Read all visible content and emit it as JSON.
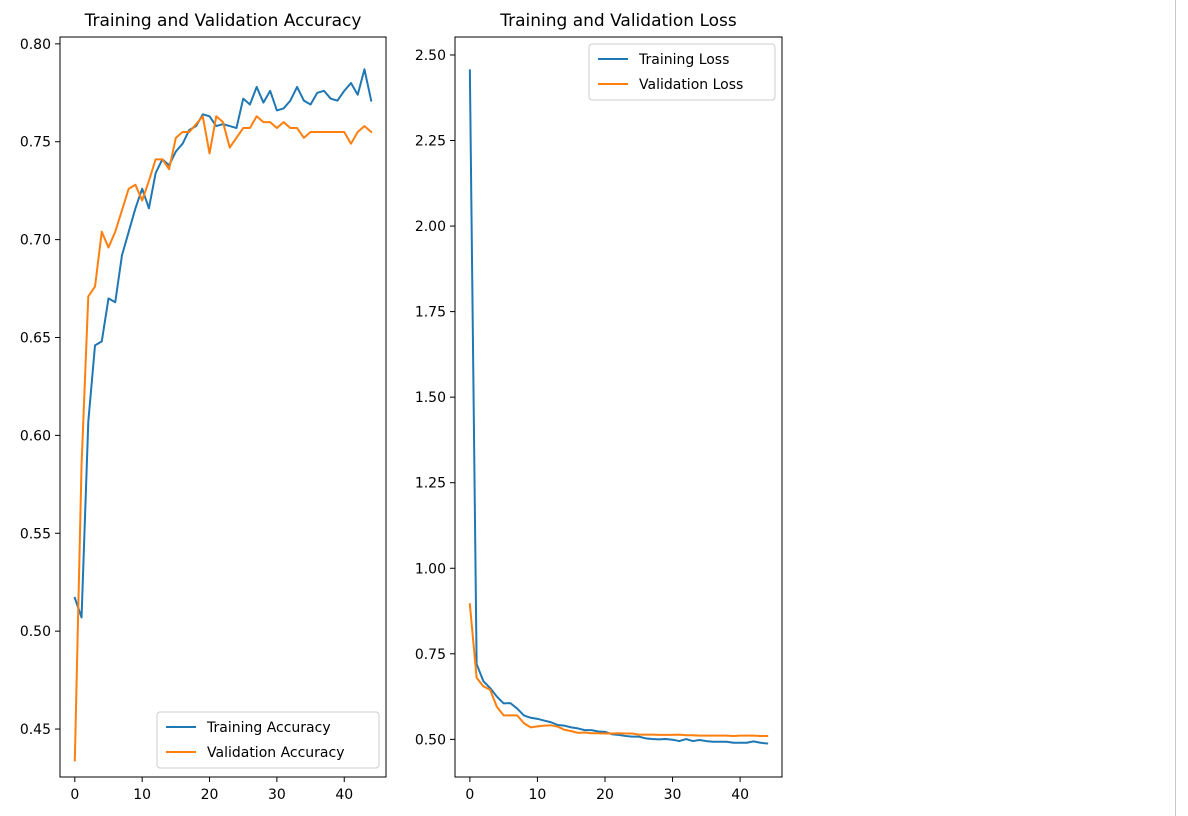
{
  "chart_data": [
    {
      "type": "line",
      "title": "Training and Validation Accuracy",
      "xlabel": "",
      "ylabel": "",
      "xlim": [
        -2.2,
        46.2
      ],
      "ylim": [
        0.4255,
        0.8035
      ],
      "xticks": [
        0,
        10,
        20,
        30,
        40
      ],
      "yticks": [
        0.45,
        0.5,
        0.55,
        0.6,
        0.65,
        0.7,
        0.75,
        0.8
      ],
      "ytick_decimals": 2,
      "grid": false,
      "legend": "lower-right",
      "x": [
        0,
        1,
        2,
        3,
        4,
        5,
        6,
        7,
        8,
        9,
        10,
        11,
        12,
        13,
        14,
        15,
        16,
        17,
        18,
        19,
        20,
        21,
        22,
        23,
        24,
        25,
        26,
        27,
        28,
        29,
        30,
        31,
        32,
        33,
        34,
        35,
        36,
        37,
        38,
        39,
        40,
        41,
        42,
        43,
        44
      ],
      "series": [
        {
          "name": "Training Accuracy",
          "color": "#1f77b4",
          "values": [
            0.517,
            0.507,
            0.607,
            0.646,
            0.648,
            0.67,
            0.668,
            0.692,
            0.704,
            0.716,
            0.726,
            0.716,
            0.734,
            0.741,
            0.738,
            0.745,
            0.749,
            0.756,
            0.758,
            0.764,
            0.763,
            0.758,
            0.759,
            0.758,
            0.757,
            0.772,
            0.769,
            0.778,
            0.77,
            0.776,
            0.766,
            0.767,
            0.771,
            0.778,
            0.771,
            0.769,
            0.775,
            0.776,
            0.772,
            0.771,
            0.776,
            0.78,
            0.774,
            0.787,
            0.771
          ]
        },
        {
          "name": "Validation Accuracy",
          "color": "#ff7f0e",
          "values": [
            0.434,
            0.585,
            0.671,
            0.676,
            0.704,
            0.696,
            0.704,
            0.715,
            0.726,
            0.728,
            0.72,
            0.73,
            0.741,
            0.741,
            0.736,
            0.752,
            0.755,
            0.755,
            0.759,
            0.763,
            0.744,
            0.763,
            0.76,
            0.747,
            0.752,
            0.757,
            0.757,
            0.763,
            0.76,
            0.76,
            0.757,
            0.76,
            0.757,
            0.757,
            0.752,
            0.755,
            0.755,
            0.755,
            0.755,
            0.755,
            0.755,
            0.749,
            0.755,
            0.758,
            0.755
          ]
        }
      ]
    },
    {
      "type": "line",
      "title": "Training and Validation Loss",
      "xlabel": "",
      "ylabel": "",
      "xlim": [
        -2.2,
        46.2
      ],
      "ylim": [
        0.39,
        2.5525
      ],
      "xticks": [
        0,
        10,
        20,
        30,
        40
      ],
      "yticks": [
        0.5,
        0.75,
        1.0,
        1.25,
        1.5,
        1.75,
        2.0,
        2.25,
        2.5
      ],
      "ytick_decimals": 2,
      "grid": false,
      "legend": "top-right",
      "x": [
        0,
        1,
        2,
        3,
        4,
        5,
        6,
        7,
        8,
        9,
        10,
        11,
        12,
        13,
        14,
        15,
        16,
        17,
        18,
        19,
        20,
        21,
        22,
        23,
        24,
        25,
        26,
        27,
        28,
        29,
        30,
        31,
        32,
        33,
        34,
        35,
        36,
        37,
        38,
        39,
        40,
        41,
        42,
        43,
        44
      ],
      "series": [
        {
          "name": "Training Loss",
          "color": "#1f77b4",
          "values": [
            2.455,
            0.72,
            0.67,
            0.65,
            0.625,
            0.605,
            0.606,
            0.59,
            0.57,
            0.563,
            0.56,
            0.555,
            0.55,
            0.542,
            0.54,
            0.535,
            0.532,
            0.527,
            0.527,
            0.523,
            0.522,
            0.515,
            0.513,
            0.51,
            0.508,
            0.508,
            0.503,
            0.501,
            0.5,
            0.501,
            0.499,
            0.495,
            0.501,
            0.495,
            0.498,
            0.495,
            0.493,
            0.493,
            0.493,
            0.49,
            0.49,
            0.49,
            0.494,
            0.49,
            0.488
          ]
        },
        {
          "name": "Validation Loss",
          "color": "#ff7f0e",
          "values": [
            0.895,
            0.68,
            0.655,
            0.645,
            0.595,
            0.57,
            0.57,
            0.57,
            0.547,
            0.535,
            0.538,
            0.54,
            0.541,
            0.537,
            0.528,
            0.524,
            0.519,
            0.52,
            0.518,
            0.518,
            0.517,
            0.517,
            0.518,
            0.517,
            0.517,
            0.514,
            0.514,
            0.514,
            0.513,
            0.513,
            0.513,
            0.514,
            0.512,
            0.512,
            0.511,
            0.511,
            0.511,
            0.511,
            0.511,
            0.51,
            0.511,
            0.511,
            0.511,
            0.51,
            0.51
          ]
        }
      ]
    }
  ]
}
